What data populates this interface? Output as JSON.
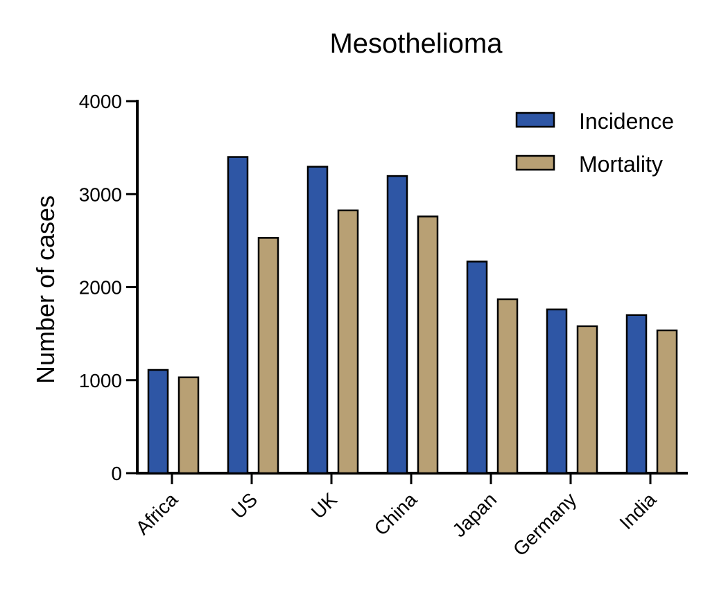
{
  "chart_data": {
    "type": "bar",
    "title": "Mesothelioma",
    "xlabel": "",
    "ylabel": "Number of cases",
    "categories": [
      "Africa",
      "US",
      "UK",
      "China",
      "Japan",
      "Germany",
      "India"
    ],
    "series": [
      {
        "name": "Incidence",
        "color": "#2e56a5",
        "values": [
          1110,
          3400,
          3295,
          3195,
          2275,
          1760,
          1700
        ]
      },
      {
        "name": "Mortality",
        "color": "#b8a074",
        "values": [
          1030,
          2530,
          2825,
          2760,
          1870,
          1580,
          1535
        ]
      }
    ],
    "ylim": [
      0,
      4000
    ],
    "yticks": [
      "0",
      "1000",
      "2000",
      "3000",
      "4000"
    ],
    "grid": false,
    "legend_position": "top-right",
    "bar_outline_color": "#000000"
  }
}
